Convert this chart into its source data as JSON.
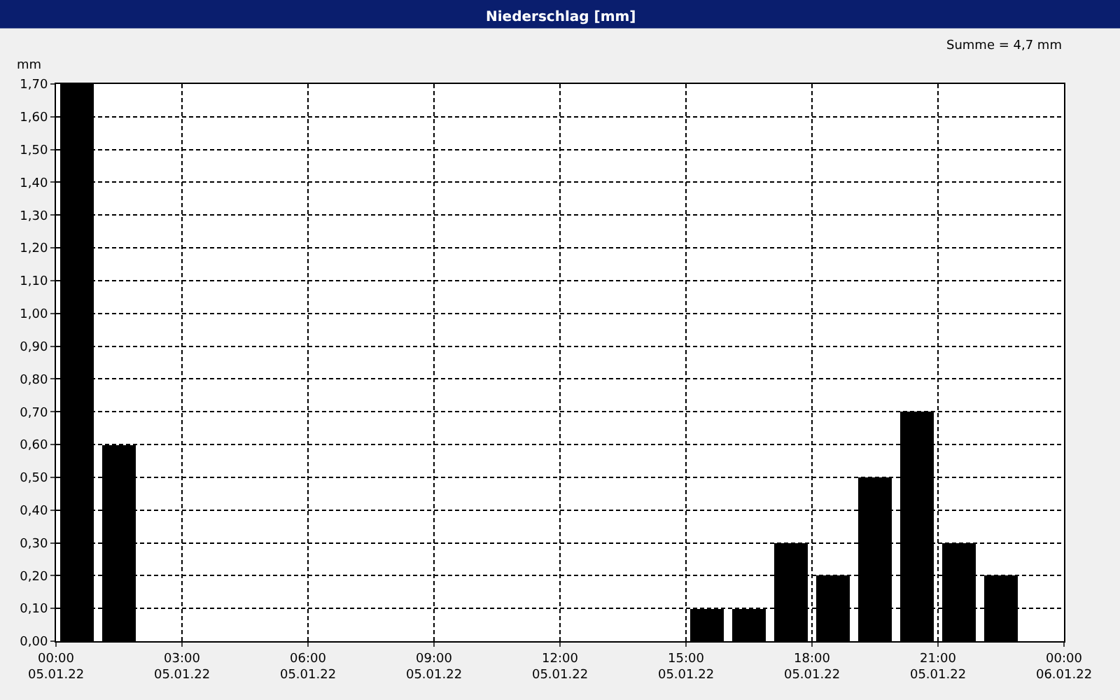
{
  "chart_data": {
    "type": "bar",
    "title": "Niederschlag [mm]",
    "ylabel": "mm",
    "annotations": [
      "Summe = 4,7 mm"
    ],
    "x": [
      "--01-05T00:30",
      "--01-05T01:30",
      "--01-05T15:30",
      "--01-05T16:30",
      "--01-05T17:30",
      "--01-05T18:30",
      "--01-05T19:30",
      "--01-05T20:30",
      "--01-05T21:30",
      "--01-05T22:30"
    ],
    "values": [
      1.7,
      0.6,
      0.1,
      0.1,
      0.3,
      0.2,
      0.5,
      0.7,
      0.3,
      0.2
    ],
    "color": "#000000",
    "xlim": [
      "--01-05T00:00",
      "--01-06T00:00"
    ],
    "xticks": [
      {
        "value": "--01-05T00:00",
        "label": "00:00\n05.01.22"
      },
      {
        "value": "--01-05T03:00",
        "label": "03:00\n05.01.22"
      },
      {
        "value": "--01-05T06:00",
        "label": "06:00\n05.01.22"
      },
      {
        "value": "--01-05T09:00",
        "label": "09:00\n05.01.22"
      },
      {
        "value": "--01-05T12:00",
        "label": "12:00\n05.01.22"
      },
      {
        "value": "--01-05T15:00",
        "label": "15:00\n05.01.22"
      },
      {
        "value": "--01-05T18:00",
        "label": "18:00\n05.01.22"
      },
      {
        "value": "--01-05T21:00",
        "label": "21:00\n05.01.22"
      },
      {
        "value": "--01-06T00:00",
        "label": "00:00\n06.01.22"
      }
    ],
    "ylim": [
      0,
      1.7
    ],
    "yticks": [
      {
        "value": 0,
        "label": "0,00"
      },
      {
        "value": 0.1,
        "label": "0,10"
      },
      {
        "value": 0.2,
        "label": "0,20"
      },
      {
        "value": 0.3,
        "label": "0,30"
      },
      {
        "value": 0.4,
        "label": "0,40"
      },
      {
        "value": 0.5,
        "label": "0,50"
      },
      {
        "value": 0.6,
        "label": "0,60"
      },
      {
        "value": 0.7,
        "label": "0,70"
      },
      {
        "value": 0.8,
        "label": "0,80"
      },
      {
        "value": 0.9,
        "label": "0,90"
      },
      {
        "value": 1.0,
        "label": "1,00"
      },
      {
        "value": 1.1,
        "label": "1,10"
      },
      {
        "value": 1.2,
        "label": "1,20"
      },
      {
        "value": 1.3,
        "label": "1,30"
      },
      {
        "value": 1.4,
        "label": "1,40"
      },
      {
        "value": 1.5,
        "label": "1,50"
      },
      {
        "value": 1.6,
        "label": "1,60"
      },
      {
        "value": 1.7,
        "label": "1,70"
      }
    ],
    "grid": true
  }
}
